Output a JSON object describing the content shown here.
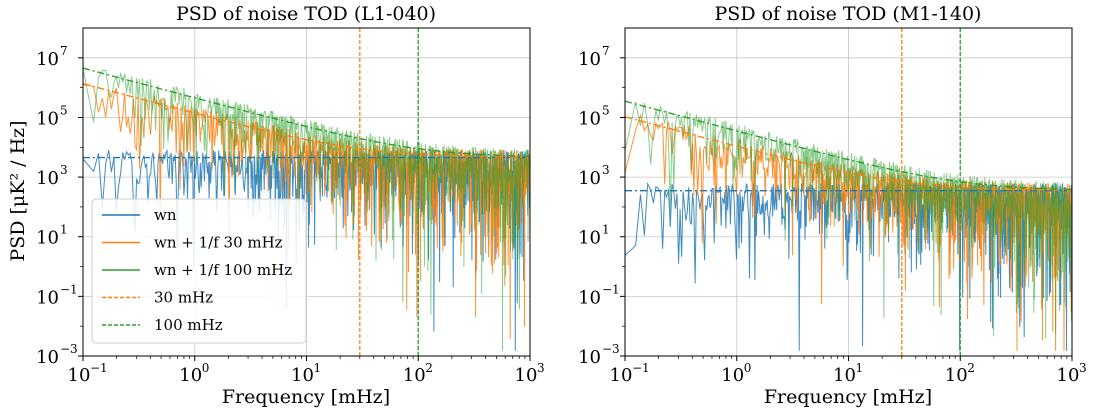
{
  "chart_data": [
    {
      "type": "line",
      "title": "PSD of noise TOD (L1-040)",
      "xlabel": "Frequency [mHz]",
      "ylabel": "PSD [μK² / Hz]",
      "xscale": "log",
      "yscale": "log",
      "xlim": [
        0.1,
        1000
      ],
      "ylim": [
        0.001,
        100000000
      ],
      "xticks": [
        {
          "base": "10",
          "exp": "−1",
          "value": 0.1
        },
        {
          "base": "10",
          "exp": "0",
          "value": 1
        },
        {
          "base": "10",
          "exp": "1",
          "value": 10
        },
        {
          "base": "10",
          "exp": "2",
          "value": 100
        },
        {
          "base": "10",
          "exp": "3",
          "value": 1000
        }
      ],
      "yticks": [
        {
          "base": "10",
          "exp": "−3",
          "value": 0.001
        },
        {
          "base": "10",
          "exp": "−1",
          "value": 0.1
        },
        {
          "base": "10",
          "exp": "1",
          "value": 10
        },
        {
          "base": "10",
          "exp": "3",
          "value": 1000
        },
        {
          "base": "10",
          "exp": "5",
          "value": 100000
        },
        {
          "base": "10",
          "exp": "7",
          "value": 10000000
        }
      ],
      "grid": true,
      "legend_position": "lower-left",
      "white_noise_level": 4500,
      "vlines": [
        {
          "name": "30 mHz",
          "x": 30,
          "color": "#ff7f0e"
        },
        {
          "name": "100 mHz",
          "x": 100,
          "color": "#2ca02c"
        }
      ],
      "series": [
        {
          "name": "wn",
          "color": "#1f77b4",
          "model": "noisy",
          "fknee": 0,
          "fit_color": "#1f77b4"
        },
        {
          "name": "wn + 1/f 30 mHz",
          "color": "#ff7f0e",
          "model": "noisy",
          "fknee": 30,
          "fit_color": "#ff7f0e"
        },
        {
          "name": "wn + 1/f 100 mHz",
          "color": "#2ca02c",
          "model": "noisy",
          "fknee": 100,
          "fit_color": "#2ca02c"
        }
      ],
      "legend": [
        {
          "label": "wn",
          "color": "#1f77b4",
          "style": "solid"
        },
        {
          "label": "wn + 1/f 30 mHz",
          "color": "#ff7f0e",
          "style": "solid"
        },
        {
          "label": "wn + 1/f 100 mHz",
          "color": "#2ca02c",
          "style": "solid"
        },
        {
          "label": "30 mHz",
          "color": "#ff7f0e",
          "style": "dashed"
        },
        {
          "label": "100 mHz",
          "color": "#2ca02c",
          "style": "dashed"
        }
      ]
    },
    {
      "type": "line",
      "title": "PSD of noise TOD (M1-140)",
      "xlabel": "Frequency [mHz]",
      "ylabel": "",
      "xscale": "log",
      "yscale": "log",
      "xlim": [
        0.1,
        1000
      ],
      "ylim": [
        0.001,
        100000000
      ],
      "xticks": [
        {
          "base": "10",
          "exp": "−1",
          "value": 0.1
        },
        {
          "base": "10",
          "exp": "0",
          "value": 1
        },
        {
          "base": "10",
          "exp": "1",
          "value": 10
        },
        {
          "base": "10",
          "exp": "2",
          "value": 100
        },
        {
          "base": "10",
          "exp": "3",
          "value": 1000
        }
      ],
      "yticks": [
        {
          "base": "10",
          "exp": "−3",
          "value": 0.001
        },
        {
          "base": "10",
          "exp": "−1",
          "value": 0.1
        },
        {
          "base": "10",
          "exp": "1",
          "value": 10
        },
        {
          "base": "10",
          "exp": "3",
          "value": 1000
        },
        {
          "base": "10",
          "exp": "5",
          "value": 100000
        },
        {
          "base": "10",
          "exp": "7",
          "value": 10000000
        }
      ],
      "grid": true,
      "legend_position": "none",
      "white_noise_level": 350,
      "vlines": [
        {
          "name": "30 mHz",
          "x": 30,
          "color": "#ff7f0e"
        },
        {
          "name": "100 mHz",
          "x": 100,
          "color": "#2ca02c"
        }
      ],
      "series": [
        {
          "name": "wn",
          "color": "#1f77b4",
          "model": "noisy",
          "fknee": 0,
          "fit_color": "#1f77b4"
        },
        {
          "name": "wn + 1/f 30 mHz",
          "color": "#ff7f0e",
          "model": "noisy",
          "fknee": 30,
          "fit_color": "#ff7f0e"
        },
        {
          "name": "wn + 1/f 100 mHz",
          "color": "#2ca02c",
          "model": "noisy",
          "fknee": 100,
          "fit_color": "#2ca02c"
        }
      ],
      "legend": []
    }
  ]
}
